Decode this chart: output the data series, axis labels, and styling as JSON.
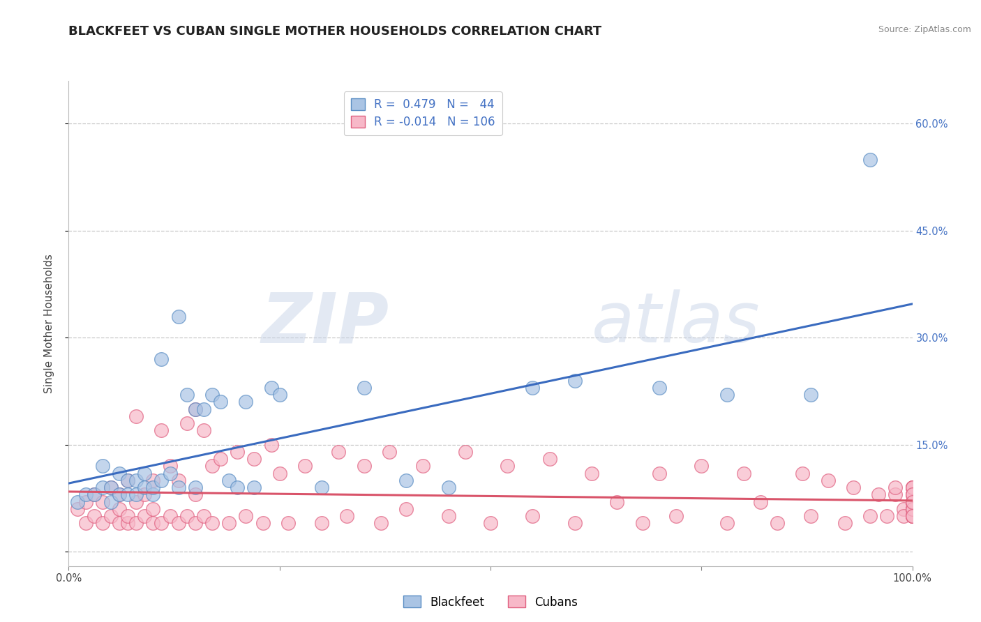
{
  "title": "BLACKFEET VS CUBAN SINGLE MOTHER HOUSEHOLDS CORRELATION CHART",
  "source": "Source: ZipAtlas.com",
  "ylabel": "Single Mother Households",
  "xlabel": "",
  "watermark_zip": "ZIP",
  "watermark_atlas": "atlas",
  "xlim": [
    0,
    1.0
  ],
  "ylim": [
    -0.02,
    0.66
  ],
  "xticks": [
    0.0,
    0.25,
    0.5,
    0.75,
    1.0
  ],
  "xticklabels": [
    "0.0%",
    "",
    "",
    "",
    "100.0%"
  ],
  "yticks_right": [
    0.15,
    0.3,
    0.45,
    0.6
  ],
  "yticklabels_right": [
    "15.0%",
    "30.0%",
    "45.0%",
    "60.0%"
  ],
  "grid_yticks": [
    0.0,
    0.15,
    0.3,
    0.45,
    0.6
  ],
  "blackfeet_color": "#aac4e4",
  "blackfeet_edge": "#5b8ec4",
  "cuban_color": "#f7b8c8",
  "cuban_edge": "#e06080",
  "line_blackfeet_color": "#3a6bbf",
  "line_cuban_color": "#d9546a",
  "background_color": "#ffffff",
  "grid_color": "#c8c8c8",
  "title_fontsize": 13,
  "axis_label_fontsize": 11,
  "tick_fontsize": 10.5,
  "legend_fontsize": 12,
  "right_ytick_color": "#4472c4",
  "blackfeet_x": [
    0.01,
    0.02,
    0.03,
    0.04,
    0.04,
    0.05,
    0.05,
    0.06,
    0.06,
    0.07,
    0.07,
    0.08,
    0.08,
    0.09,
    0.09,
    0.1,
    0.1,
    0.11,
    0.11,
    0.12,
    0.13,
    0.13,
    0.14,
    0.15,
    0.15,
    0.16,
    0.17,
    0.18,
    0.19,
    0.2,
    0.21,
    0.22,
    0.24,
    0.25,
    0.3,
    0.35,
    0.4,
    0.45,
    0.55,
    0.6,
    0.7,
    0.78,
    0.88,
    0.95
  ],
  "blackfeet_y": [
    0.07,
    0.08,
    0.08,
    0.09,
    0.12,
    0.07,
    0.09,
    0.08,
    0.11,
    0.08,
    0.1,
    0.08,
    0.1,
    0.09,
    0.11,
    0.08,
    0.09,
    0.1,
    0.27,
    0.11,
    0.09,
    0.33,
    0.22,
    0.09,
    0.2,
    0.2,
    0.22,
    0.21,
    0.1,
    0.09,
    0.21,
    0.09,
    0.23,
    0.22,
    0.09,
    0.23,
    0.1,
    0.09,
    0.23,
    0.24,
    0.23,
    0.22,
    0.22,
    0.55
  ],
  "cuban_x": [
    0.01,
    0.02,
    0.02,
    0.03,
    0.03,
    0.04,
    0.04,
    0.05,
    0.05,
    0.06,
    0.06,
    0.06,
    0.07,
    0.07,
    0.07,
    0.08,
    0.08,
    0.08,
    0.09,
    0.09,
    0.1,
    0.1,
    0.1,
    0.11,
    0.11,
    0.12,
    0.12,
    0.13,
    0.13,
    0.14,
    0.14,
    0.15,
    0.15,
    0.15,
    0.16,
    0.16,
    0.17,
    0.17,
    0.18,
    0.19,
    0.2,
    0.21,
    0.22,
    0.23,
    0.24,
    0.25,
    0.26,
    0.28,
    0.3,
    0.32,
    0.33,
    0.35,
    0.37,
    0.38,
    0.4,
    0.42,
    0.45,
    0.47,
    0.5,
    0.52,
    0.55,
    0.57,
    0.6,
    0.62,
    0.65,
    0.68,
    0.7,
    0.72,
    0.75,
    0.78,
    0.8,
    0.82,
    0.84,
    0.87,
    0.88,
    0.9,
    0.92,
    0.93,
    0.95,
    0.96,
    0.97,
    0.98,
    0.98,
    0.99,
    0.99,
    1.0,
    1.0,
    1.0,
    1.0,
    1.0,
    1.0,
    1.0,
    1.0,
    1.0,
    1.0,
    1.0,
    1.0,
    1.0,
    1.0,
    1.0,
    1.0,
    1.0,
    1.0,
    1.0,
    1.0,
    1.0
  ],
  "cuban_y": [
    0.06,
    0.07,
    0.04,
    0.05,
    0.08,
    0.04,
    0.07,
    0.05,
    0.09,
    0.04,
    0.06,
    0.08,
    0.04,
    0.05,
    0.1,
    0.04,
    0.07,
    0.19,
    0.05,
    0.08,
    0.04,
    0.06,
    0.1,
    0.04,
    0.17,
    0.05,
    0.12,
    0.04,
    0.1,
    0.05,
    0.18,
    0.04,
    0.08,
    0.2,
    0.05,
    0.17,
    0.04,
    0.12,
    0.13,
    0.04,
    0.14,
    0.05,
    0.13,
    0.04,
    0.15,
    0.11,
    0.04,
    0.12,
    0.04,
    0.14,
    0.05,
    0.12,
    0.04,
    0.14,
    0.06,
    0.12,
    0.05,
    0.14,
    0.04,
    0.12,
    0.05,
    0.13,
    0.04,
    0.11,
    0.07,
    0.04,
    0.11,
    0.05,
    0.12,
    0.04,
    0.11,
    0.07,
    0.04,
    0.11,
    0.05,
    0.1,
    0.04,
    0.09,
    0.05,
    0.08,
    0.05,
    0.08,
    0.09,
    0.06,
    0.05,
    0.06,
    0.07,
    0.05,
    0.08,
    0.07,
    0.06,
    0.09,
    0.05,
    0.09,
    0.06,
    0.07,
    0.05,
    0.09,
    0.07,
    0.05,
    0.08,
    0.09,
    0.06,
    0.05,
    0.08,
    0.07
  ]
}
